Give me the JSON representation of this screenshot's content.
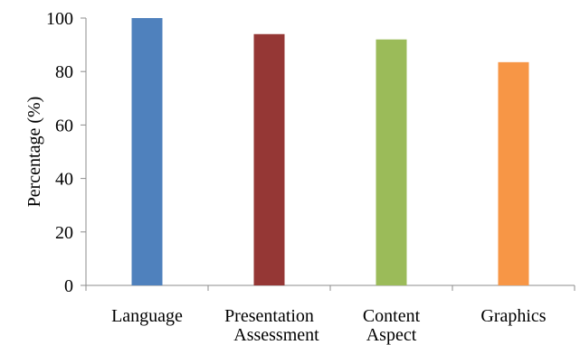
{
  "chart_data": {
    "type": "bar",
    "categories": [
      [
        "Language"
      ],
      [
        "Presentation",
        "Assessment"
      ],
      [
        "Content",
        "Aspect"
      ],
      [
        "Graphics"
      ]
    ],
    "values": [
      100,
      94,
      92,
      83.5
    ],
    "colors": [
      "#4f81bd",
      "#953735",
      "#9bbb59",
      "#f79646"
    ],
    "title": "",
    "xlabel": "",
    "ylabel": "Percentage (%)",
    "ylim": [
      0,
      100
    ],
    "yticks": [
      "0",
      "20",
      "40",
      "60",
      "80",
      "100"
    ],
    "grid": false,
    "legend": "none"
  }
}
